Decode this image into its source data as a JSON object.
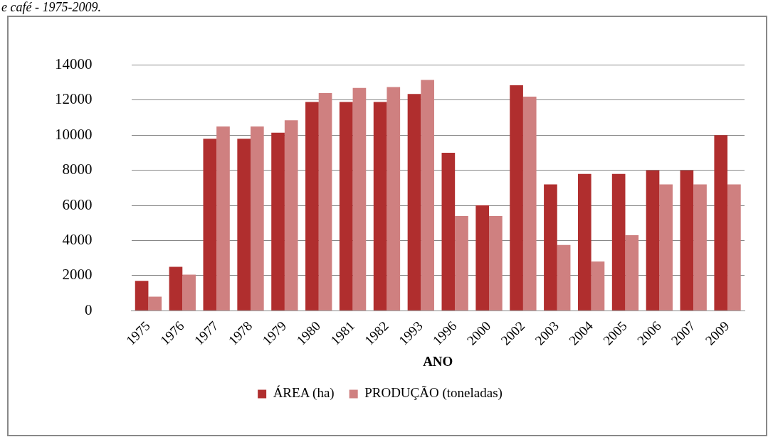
{
  "chart_data": {
    "type": "bar",
    "title": "e café - 1975-2009.",
    "xlabel": "ANO",
    "categories": [
      "1975",
      "1976",
      "1977",
      "1978",
      "1979",
      "1980",
      "1981",
      "1982",
      "1993",
      "1996",
      "2000",
      "2002",
      "2003",
      "2004",
      "2005",
      "2006",
      "2007",
      "2009"
    ],
    "series": [
      {
        "name": "ÁREA (ha)",
        "color": "#b02e2e",
        "values": [
          1700,
          2500,
          9800,
          9800,
          10150,
          11900,
          11900,
          11900,
          12350,
          9000,
          6000,
          12850,
          7200,
          7800,
          7800,
          8000,
          8000,
          10000
        ]
      },
      {
        "name": "PRODUÇÃO (toneladas)",
        "color": "#cf8080",
        "values": [
          800,
          2050,
          10500,
          10500,
          10850,
          12400,
          12700,
          12750,
          13150,
          5400,
          5400,
          12200,
          3750,
          2800,
          4300,
          7200,
          7200,
          7200
        ]
      }
    ],
    "ylim": [
      0,
      14000
    ],
    "yticks": [
      0,
      2000,
      4000,
      6000,
      8000,
      10000,
      12000,
      14000
    ],
    "grid": "y",
    "legend": "bottom"
  }
}
